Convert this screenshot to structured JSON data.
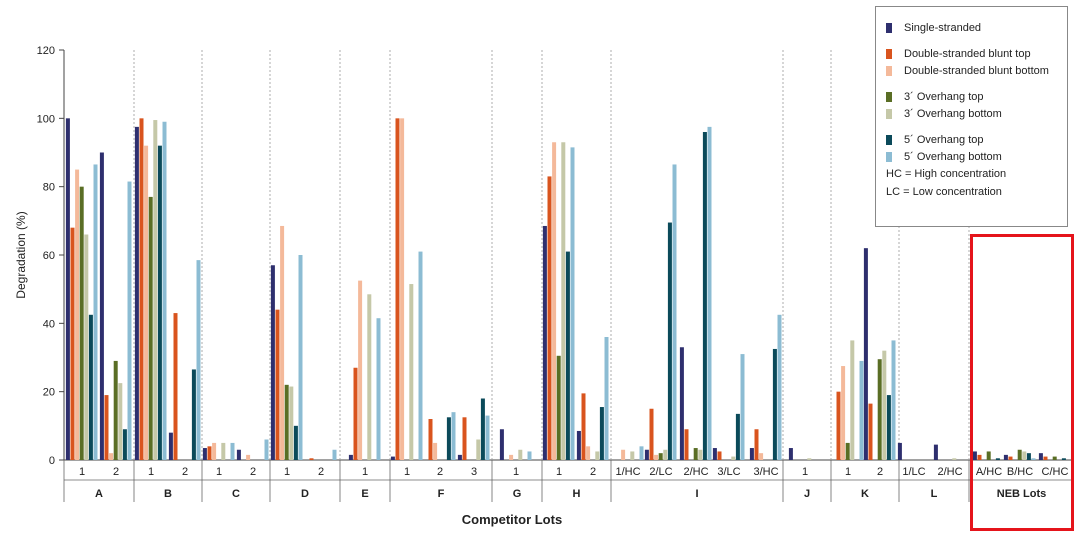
{
  "chart_data": {
    "type": "bar",
    "title": "",
    "xlabel": "Competitor Lots",
    "ylabel": "Degradation (%)",
    "ylim": [
      0,
      120
    ],
    "yticks": [
      0,
      20,
      40,
      60,
      80,
      100,
      120
    ],
    "grid": false,
    "legend_position": "top-right",
    "series": [
      {
        "name": "Single-stranded",
        "color": "#2e2f6e"
      },
      {
        "name": "Double-stranded blunt top",
        "color": "#d9541e"
      },
      {
        "name": "Double-stranded blunt bottom",
        "color": "#f4b99a"
      },
      {
        "name": "3´ Overhang top",
        "color": "#5a6e25"
      },
      {
        "name": "3´ Overhang bottom",
        "color": "#c5c8a8"
      },
      {
        "name": "5´ Overhang top",
        "color": "#0b4a5a"
      },
      {
        "name": "5´ Overhang bottom",
        "color": "#8cbcd3"
      }
    ],
    "legend_notes": [
      "HC = High concentration",
      "LC = Low concentration"
    ],
    "groups": [
      {
        "name": "A",
        "categories": [
          {
            "label": "1",
            "values": [
              100,
              68,
              85,
              80,
              66,
              42.5,
              86.5
            ]
          },
          {
            "label": "2",
            "values": [
              90,
              19,
              2,
              29,
              22.5,
              9,
              81.5
            ]
          }
        ]
      },
      {
        "name": "B",
        "categories": [
          {
            "label": "1",
            "values": [
              97.5,
              100,
              92,
              77,
              99.5,
              92,
              99
            ]
          },
          {
            "label": "2",
            "values": [
              8,
              43,
              0,
              0,
              0,
              26.5,
              58.5
            ]
          }
        ]
      },
      {
        "name": "C",
        "categories": [
          {
            "label": "1",
            "values": [
              3.5,
              4,
              5,
              0,
              5,
              0,
              5
            ]
          },
          {
            "label": "2",
            "values": [
              3,
              0,
              1.5,
              0,
              0,
              0,
              6
            ]
          }
        ]
      },
      {
        "name": "D",
        "categories": [
          {
            "label": "1",
            "values": [
              57,
              44,
              68.5,
              22,
              21.5,
              10,
              60
            ]
          },
          {
            "label": "2",
            "values": [
              0,
              0.5,
              0,
              0,
              0,
              0,
              3
            ]
          }
        ]
      },
      {
        "name": "E",
        "categories": [
          {
            "label": "1",
            "values": [
              1.5,
              27,
              52.5,
              0,
              48.5,
              0,
              41.5
            ]
          }
        ]
      },
      {
        "name": "F",
        "categories": [
          {
            "label": "1",
            "values": [
              1,
              100,
              100,
              0,
              51.5,
              0,
              61
            ]
          },
          {
            "label": "2",
            "values": [
              0,
              12,
              5,
              0,
              0,
              12.5,
              14
            ]
          },
          {
            "label": "3",
            "values": [
              1.5,
              12.5,
              0,
              0,
              6,
              18,
              13
            ]
          }
        ]
      },
      {
        "name": "G",
        "categories": [
          {
            "label": "1",
            "values": [
              9,
              0,
              1.5,
              0,
              3,
              0,
              2.5
            ]
          }
        ]
      },
      {
        "name": "H",
        "categories": [
          {
            "label": "1",
            "values": [
              68.5,
              83,
              93,
              30.5,
              93,
              61,
              91.5
            ]
          },
          {
            "label": "2",
            "values": [
              8.5,
              19.5,
              4,
              0,
              2.5,
              15.5,
              36
            ]
          }
        ]
      },
      {
        "name": "I",
        "categories": [
          {
            "label": "1/HC",
            "values": [
              0,
              0,
              3,
              0,
              2.5,
              0,
              4
            ]
          },
          {
            "label": "2/LC",
            "values": [
              3,
              15,
              1.5,
              2,
              3,
              69.5,
              86.5
            ]
          },
          {
            "label": "2/HC",
            "values": [
              33,
              9,
              0,
              3.5,
              3,
              96,
              97.5
            ]
          },
          {
            "label": "3/LC",
            "values": [
              3.5,
              2.5,
              0,
              0,
              1,
              13.5,
              31
            ]
          },
          {
            "label": "3/HC",
            "values": [
              3.5,
              9,
              2,
              0,
              0,
              32.5,
              42.5
            ]
          }
        ]
      },
      {
        "name": "J",
        "categories": [
          {
            "label": "1",
            "values": [
              3.5,
              0,
              0,
              0,
              0.5,
              0,
              0
            ]
          }
        ]
      },
      {
        "name": "K",
        "categories": [
          {
            "label": "1",
            "values": [
              0,
              20,
              27.5,
              5,
              35,
              0,
              29
            ]
          },
          {
            "label": "2",
            "values": [
              62,
              16.5,
              0,
              29.5,
              32,
              19,
              35
            ]
          }
        ]
      },
      {
        "name": "L",
        "categories": [
          {
            "label": "1/LC",
            "values": [
              5,
              0,
              0,
              0,
              0,
              0,
              0
            ]
          },
          {
            "label": "2/HC",
            "values": [
              4.5,
              0,
              0,
              0,
              0.5,
              0,
              0
            ]
          }
        ]
      },
      {
        "name": "NEB Lots",
        "categories": [
          {
            "label": "A/HC",
            "values": [
              2.5,
              1.5,
              0,
              2.5,
              0,
              0.5,
              0
            ]
          },
          {
            "label": "B/HC",
            "values": [
              1.5,
              1,
              0,
              3,
              2.5,
              2,
              0.5
            ]
          },
          {
            "label": "C/HC",
            "values": [
              2,
              1,
              0,
              1,
              0,
              0.5,
              0
            ]
          }
        ]
      }
    ]
  }
}
